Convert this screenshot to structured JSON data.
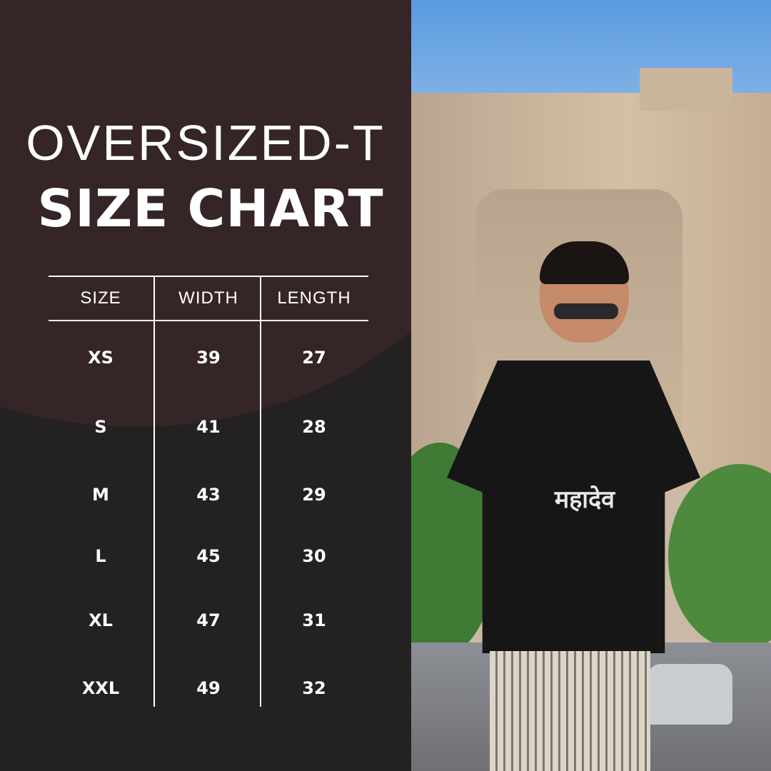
{
  "title_line1": "OVERSIZED-T",
  "title_line2": "SIZE CHART",
  "table": {
    "headers": [
      "SIZE",
      "WIDTH",
      "LENGTH"
    ],
    "rows": [
      [
        "XS",
        "39",
        "27"
      ],
      [
        "S",
        "41",
        "28"
      ],
      [
        "M",
        "43",
        "29"
      ],
      [
        "L",
        "45",
        "30"
      ],
      [
        "XL",
        "47",
        "31"
      ],
      [
        "XXL",
        "49",
        "32"
      ]
    ]
  },
  "shirt_print": "महादेव",
  "colors": {
    "panel_brown": "#352526",
    "panel_dark": "#232122",
    "text": "#ffffff"
  }
}
